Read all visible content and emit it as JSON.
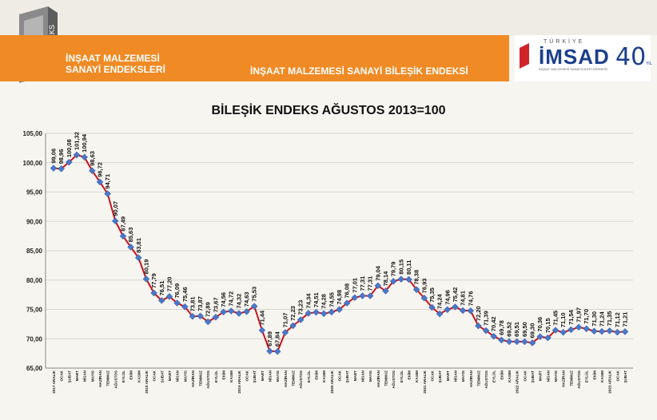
{
  "header": {
    "badge": "ENDEKS",
    "left_title_line1": "İNŞAAT MALZEMESİ",
    "left_title_line2": "SANAYİ ENDEKSLERİ",
    "main_title": "İNŞAAT MALZEMESİ SANAYİ BİLEŞİK ENDEKSİ",
    "logo_top": "TÜRKİYE",
    "logo_brand": "İMSAD",
    "logo_sub": "İNŞAAT MALZEMESİ SANAYİCİLERİ DERNEĞİ",
    "logo_anniv": "40",
    "logo_anniv_suffix": "YIL"
  },
  "chart_data": {
    "type": "line",
    "title": "BİLEŞİK ENDEKS AĞUSTOS 2013=100",
    "ylim": [
      65,
      105
    ],
    "yticks": [
      "65,00",
      "70,00",
      "75,00",
      "80,00",
      "85,00",
      "90,00",
      "95,00",
      "100,00",
      "105,00"
    ],
    "categories": [
      "2017 ARALIK",
      "OCAK",
      "ŞUBAT",
      "MART",
      "NİSAN",
      "MAYIS",
      "HAZİRAN",
      "TEMMUZ",
      "AĞUSTOS",
      "EYLÜL",
      "EKİM",
      "KASIM",
      "2018 ARALIK",
      "OCAK",
      "ŞUBAT",
      "MART",
      "NİSAN",
      "MAYIS",
      "HAZİRAN",
      "TEMMUZ",
      "AĞUSTOS",
      "EYLÜL",
      "EKİM",
      "KASIM",
      "2019 ARALIK",
      "OCAK",
      "ŞUBAT",
      "MART",
      "NİSAN",
      "MAYIS",
      "HAZİRAN",
      "TEMMUZ",
      "AĞUSTOS",
      "EYLÜL",
      "EKİM",
      "KASIM",
      "2020 ARALIK",
      "OCAK",
      "ŞUBAT",
      "MART",
      "NİSAN",
      "MAYIS",
      "HAZİRAN",
      "TEMMUZ",
      "AĞUSTOS",
      "EYLÜL",
      "EKİM",
      "KASIM",
      "2021 ARALIK",
      "OCAK",
      "ŞUBAT",
      "MART",
      "NİSAN",
      "MAYIS",
      "HAZİRAN",
      "TEMMUZ",
      "AĞUSTOS",
      "EYLÜL",
      "EKİM",
      "KASIM",
      "2022 ARALIK",
      "OCAK",
      "ŞUBAT",
      "MART",
      "NİSAN",
      "MAYIS",
      "HAZİRAN",
      "TEMMUZ",
      "AĞUSTOS",
      "EYLÜL",
      "EKİM",
      "KASIM",
      "2023 ARALIK",
      "OCAK",
      "ŞUBAT"
    ],
    "values": [
      99.06,
      98.96,
      100.08,
      101.32,
      100.94,
      98.63,
      96.72,
      94.71,
      90.07,
      87.49,
      85.63,
      83.81,
      80.19,
      77.79,
      76.51,
      77.2,
      76.09,
      75.46,
      73.81,
      73.87,
      72.89,
      73.67,
      74.56,
      74.72,
      74.32,
      74.63,
      75.53,
      71.44,
      67.89,
      67.84,
      71.07,
      72.23,
      73.23,
      74.34,
      74.51,
      74.28,
      74.55,
      74.98,
      76.08,
      77.01,
      77.31,
      77.31,
      79.04,
      78.14,
      79.79,
      80.15,
      80.11,
      78.38,
      76.93,
      75.35,
      74.24,
      74.96,
      75.42,
      74.81,
      74.76,
      72.2,
      71.39,
      70.42,
      69.78,
      69.52,
      69.51,
      69.5,
      69.3,
      70.36,
      70.15,
      71.45,
      71.1,
      71.54,
      71.97,
      71.7,
      71.3,
      71.24,
      71.35,
      71.12,
      71.21
    ],
    "labels": [
      "99,06",
      "98,96",
      "100,08",
      "101,32",
      "100,94",
      "98,63",
      "96,72",
      "94,71",
      "90,07",
      "87,49",
      "85,63",
      "83,81",
      "80,19",
      "77,79",
      "76,51",
      "77,20",
      "76,09",
      "75,46",
      "73,81",
      "73,87",
      "72,89",
      "73,67",
      "74,56",
      "74,72",
      "74,32",
      "74,63",
      "75,53",
      "71,44",
      "67,89",
      "67,84",
      "71,07",
      "72,23",
      "73,23",
      "74,34",
      "74,51",
      "74,28",
      "74,55",
      "74,98",
      "76,08",
      "77,01",
      "77,31",
      "77,31",
      "79,04",
      "78,14",
      "79,79",
      "80,15",
      "80,11",
      "78,38",
      "76,93",
      "75,35",
      "74,24",
      "74,96",
      "75,42",
      "74,81",
      "74,76",
      "72,20",
      "71,39",
      "70,42",
      "69,78",
      "69,52",
      "69,51",
      "69,50",
      "69,30",
      "70,36",
      "70,15",
      "71,45",
      "71,10",
      "71,54",
      "71,97",
      "71,70",
      "71,30",
      "71,24",
      "71,35",
      "71,12",
      "71,21"
    ],
    "line_color": "#c8141e",
    "marker_color": "#4a78c8",
    "grid": true,
    "legend": "none"
  }
}
